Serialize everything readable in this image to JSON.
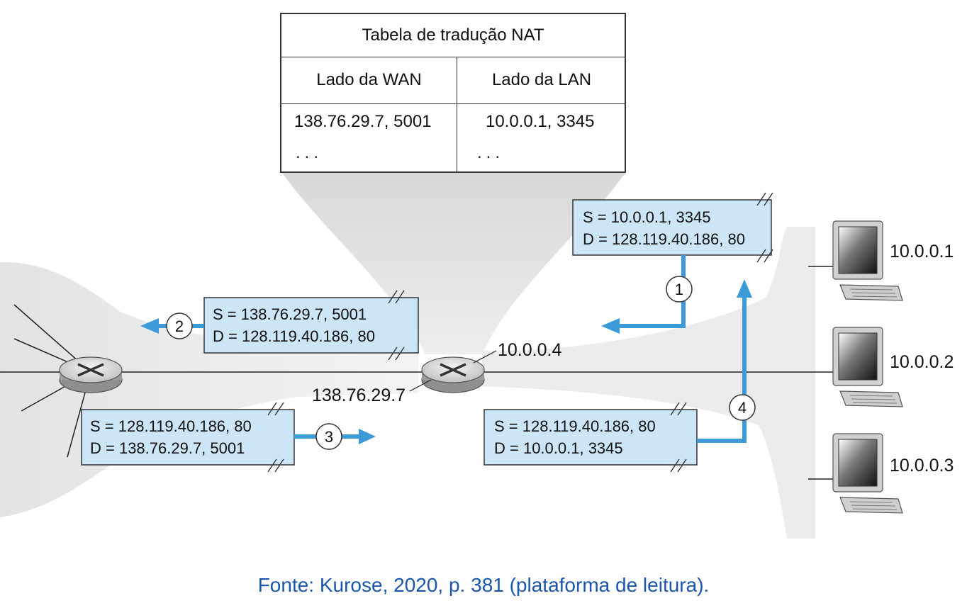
{
  "nat_table": {
    "title": "Tabela de tradução NAT",
    "columns": [
      "Lado da WAN",
      "Lado da LAN"
    ],
    "rows": [
      [
        "138.76.29.7, 5001",
        "10.0.0.1, 3345"
      ],
      [
        "...",
        "..."
      ]
    ]
  },
  "packets": {
    "p1": {
      "s": "S = 10.0.0.1, 3345",
      "d": "D = 128.119.40.186, 80",
      "step": "1"
    },
    "p2": {
      "s": "S = 138.76.29.7, 5001",
      "d": "D = 128.119.40.186, 80",
      "step": "2"
    },
    "p3": {
      "s": "S = 128.119.40.186, 80",
      "d": "D = 138.76.29.7, 5001",
      "step": "3"
    },
    "p4": {
      "s": "S = 128.119.40.186, 80",
      "d": "D = 10.0.0.1, 3345",
      "step": "4"
    }
  },
  "router": {
    "lan_ip": "10.0.0.4",
    "wan_ip": "138.76.29.7"
  },
  "hosts": [
    "10.0.0.1",
    "10.0.0.2",
    "10.0.0.3"
  ],
  "caption": "Fonte: Kurose, 2020, p. 381 (plataforma de leitura).",
  "colors": {
    "packet_fill": "#cde6f7",
    "arrow": "#3c9ad8",
    "caption": "#1a56b0",
    "cloud": "#ebebeb"
  }
}
